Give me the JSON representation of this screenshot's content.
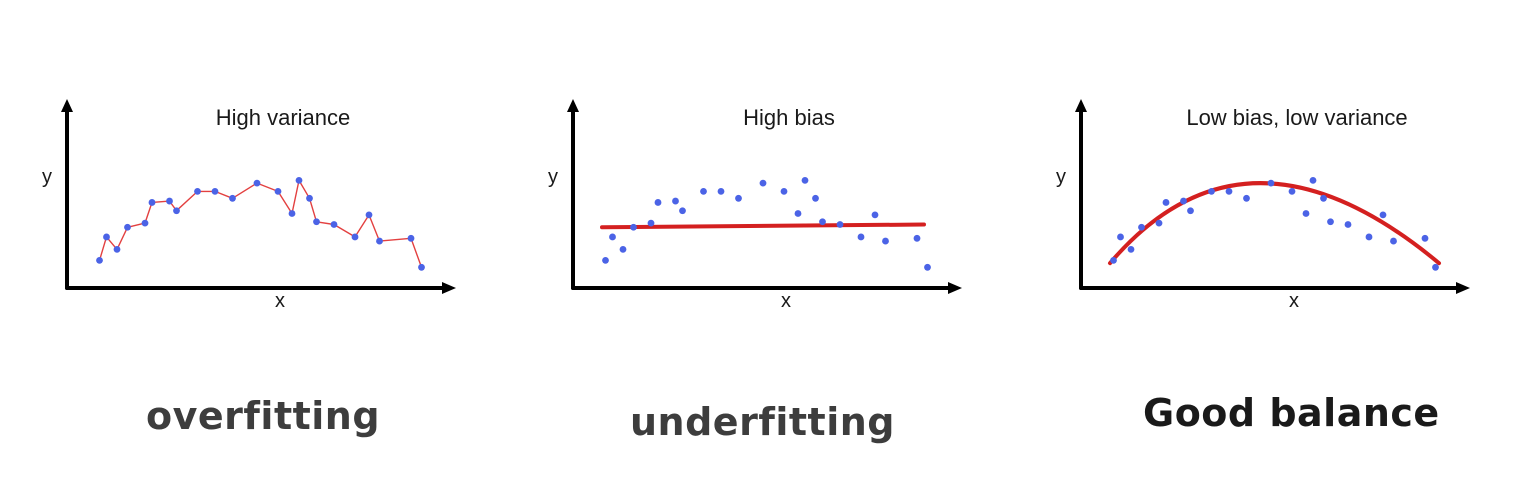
{
  "chart_data": [
    {
      "type": "scatter",
      "title": "High variance",
      "xlabel": "x",
      "ylabel": "y",
      "xlim": [
        0,
        100
      ],
      "ylim": [
        0,
        100
      ],
      "grid": false,
      "fit": "interpolating",
      "fit_color": "#e34040",
      "point_color": "#4b63e6",
      "points": [
        [
          5,
          20
        ],
        [
          7,
          37
        ],
        [
          10,
          28
        ],
        [
          13,
          44
        ],
        [
          18,
          47
        ],
        [
          20,
          62
        ],
        [
          25,
          63
        ],
        [
          27,
          56
        ],
        [
          33,
          70
        ],
        [
          38,
          70
        ],
        [
          43,
          65
        ],
        [
          50,
          76
        ],
        [
          56,
          70
        ],
        [
          60,
          54
        ],
        [
          62,
          78
        ],
        [
          65,
          65
        ],
        [
          67,
          48
        ],
        [
          72,
          46
        ],
        [
          78,
          37
        ],
        [
          82,
          53
        ],
        [
          85,
          34
        ],
        [
          94,
          36
        ],
        [
          97,
          15
        ]
      ],
      "caption": "overfitting",
      "caption_color": "#3d3d3d"
    },
    {
      "type": "scatter",
      "title": "High bias",
      "xlabel": "x",
      "ylabel": "y",
      "xlim": [
        0,
        100
      ],
      "ylim": [
        0,
        100
      ],
      "grid": false,
      "fit": "linear",
      "fit_color": "#d42020",
      "fit_line": [
        [
          4,
          44
        ],
        [
          96,
          46
        ]
      ],
      "point_color": "#4b63e6",
      "points": [
        [
          5,
          20
        ],
        [
          7,
          37
        ],
        [
          10,
          28
        ],
        [
          13,
          44
        ],
        [
          18,
          47
        ],
        [
          20,
          62
        ],
        [
          25,
          63
        ],
        [
          27,
          56
        ],
        [
          33,
          70
        ],
        [
          38,
          70
        ],
        [
          43,
          65
        ],
        [
          50,
          76
        ],
        [
          56,
          70
        ],
        [
          60,
          54
        ],
        [
          62,
          78
        ],
        [
          65,
          65
        ],
        [
          67,
          48
        ],
        [
          72,
          46
        ],
        [
          78,
          37
        ],
        [
          82,
          53
        ],
        [
          85,
          34
        ],
        [
          94,
          36
        ],
        [
          97,
          15
        ]
      ],
      "caption": "underfitting",
      "caption_color": "#3d3d3d"
    },
    {
      "type": "scatter",
      "title": "Low bias, low variance",
      "xlabel": "x",
      "ylabel": "y",
      "xlim": [
        0,
        100
      ],
      "ylim": [
        0,
        100
      ],
      "grid": false,
      "fit": "quadratic",
      "fit_color": "#d42020",
      "fit_curve": [
        [
          4,
          18
        ],
        [
          47,
          76
        ],
        [
          98,
          18
        ]
      ],
      "point_color": "#4b63e6",
      "points": [
        [
          5,
          20
        ],
        [
          7,
          37
        ],
        [
          10,
          28
        ],
        [
          13,
          44
        ],
        [
          18,
          47
        ],
        [
          20,
          62
        ],
        [
          25,
          63
        ],
        [
          27,
          56
        ],
        [
          33,
          70
        ],
        [
          38,
          70
        ],
        [
          43,
          65
        ],
        [
          50,
          76
        ],
        [
          56,
          70
        ],
        [
          60,
          54
        ],
        [
          62,
          78
        ],
        [
          65,
          65
        ],
        [
          67,
          48
        ],
        [
          72,
          46
        ],
        [
          78,
          37
        ],
        [
          82,
          53
        ],
        [
          85,
          34
        ],
        [
          94,
          36
        ],
        [
          97,
          15
        ]
      ],
      "caption": "Good balance",
      "caption_color": "#1a1a1a"
    }
  ]
}
